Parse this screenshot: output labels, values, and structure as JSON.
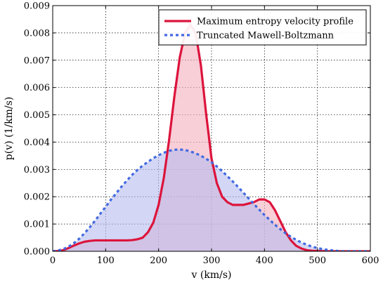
{
  "chart_data": {
    "type": "area",
    "xlabel": "v (km/s)",
    "ylabel": "p(v) (1/km/s)",
    "xlim": [
      0,
      600
    ],
    "ylim": [
      0,
      0.009
    ],
    "x_ticks": [
      "0",
      "100",
      "200",
      "300",
      "400",
      "500",
      "600"
    ],
    "y_ticks": [
      "0.000",
      "0.001",
      "0.002",
      "0.003",
      "0.004",
      "0.005",
      "0.006",
      "0.007",
      "0.008",
      "0.009"
    ],
    "grid": true,
    "legend_position": "top-right",
    "series": [
      {
        "name": "Maximum entropy velocity profile",
        "color": "#dc143c",
        "fill": "#f4aebc",
        "line_style": "solid",
        "x": [
          0,
          10,
          20,
          30,
          40,
          50,
          60,
          70,
          80,
          90,
          100,
          110,
          120,
          130,
          140,
          150,
          160,
          170,
          180,
          190,
          200,
          210,
          220,
          230,
          240,
          250,
          260,
          270,
          280,
          290,
          300,
          310,
          320,
          330,
          340,
          350,
          360,
          370,
          380,
          390,
          400,
          410,
          420,
          430,
          440,
          450,
          460,
          470,
          480,
          490,
          500,
          520,
          540,
          560,
          580,
          600
        ],
        "y": [
          0,
          1e-05,
          4e-05,
          0.00012,
          0.00021,
          0.00029,
          0.00035,
          0.00038,
          0.0004,
          0.0004,
          0.0004,
          0.0004,
          0.0004,
          0.0004,
          0.0004,
          0.00041,
          0.00044,
          0.0005,
          0.0007,
          0.00105,
          0.0017,
          0.0027,
          0.0041,
          0.0057,
          0.0071,
          0.008,
          0.0083,
          0.008,
          0.0068,
          0.005,
          0.0034,
          0.0025,
          0.002,
          0.0018,
          0.0017,
          0.0017,
          0.0017,
          0.00175,
          0.0018,
          0.0019,
          0.0019,
          0.0018,
          0.0015,
          0.0011,
          0.0007,
          0.0004,
          0.0002,
          0.0001,
          4e-05,
          2e-05,
          1e-05,
          0,
          0,
          0,
          0,
          0
        ]
      },
      {
        "name": "Truncated Mawell-Boltzmann",
        "color": "#4169e1",
        "fill": "#b5bdef",
        "line_style": "dashed",
        "x": [
          0,
          10,
          20,
          30,
          40,
          50,
          60,
          70,
          80,
          90,
          100,
          110,
          120,
          130,
          140,
          150,
          160,
          170,
          180,
          190,
          200,
          210,
          220,
          230,
          240,
          250,
          260,
          270,
          280,
          290,
          300,
          310,
          320,
          330,
          340,
          350,
          360,
          370,
          380,
          390,
          400,
          410,
          420,
          430,
          440,
          450,
          460,
          470,
          480,
          490,
          500,
          510,
          520,
          530,
          540,
          550,
          560,
          580,
          600
        ],
        "y": [
          0,
          3e-05,
          8e-05,
          0.00017,
          0.0003,
          0.00046,
          0.00066,
          0.00088,
          0.00112,
          0.00138,
          0.00163,
          0.00189,
          0.00213,
          0.00237,
          0.00259,
          0.0028,
          0.00298,
          0.00314,
          0.00328,
          0.00341,
          0.00352,
          0.00361,
          0.00368,
          0.00372,
          0.00373,
          0.00371,
          0.00366,
          0.00359,
          0.0035,
          0.00339,
          0.00326,
          0.00311,
          0.00294,
          0.00275,
          0.00256,
          0.00236,
          0.00215,
          0.00194,
          0.00173,
          0.00153,
          0.00133,
          0.00115,
          0.00097,
          0.00081,
          0.00066,
          0.00053,
          0.00042,
          0.00032,
          0.00024,
          0.00017,
          0.00012,
          8e-05,
          5e-05,
          3e-05,
          1e-05,
          0,
          0,
          0,
          0
        ]
      }
    ]
  }
}
